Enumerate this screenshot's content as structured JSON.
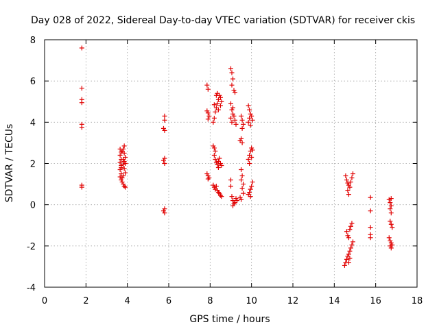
{
  "chart_data": {
    "type": "scatter",
    "title": "Day 028 of 2022, Sidereal Day-to-day VTEC variation (SDTVAR) for receiver ckis",
    "xlabel": "GPS time / hours",
    "ylabel": "SDTVAR / TECUs",
    "xlim": [
      0,
      18
    ],
    "ylim": [
      -4,
      8
    ],
    "x_ticks": [
      0,
      2,
      4,
      6,
      8,
      10,
      12,
      14,
      16,
      18
    ],
    "x_tick_labels": [
      "0",
      "2",
      "4",
      "6",
      "8",
      "10",
      "12",
      "14",
      "16",
      "18"
    ],
    "y_ticks": [
      -4,
      -2,
      0,
      2,
      4,
      6,
      8
    ],
    "y_tick_labels": [
      "-4",
      "-2",
      "0",
      "2",
      "4",
      "6",
      "8"
    ],
    "grid": true,
    "marker": "plus",
    "marker_color": "#e00000",
    "series": [
      {
        "name": "SDTVAR",
        "points": [
          [
            1.8,
            7.6
          ],
          [
            1.8,
            5.65
          ],
          [
            1.8,
            5.1
          ],
          [
            1.8,
            4.95
          ],
          [
            1.8,
            3.9
          ],
          [
            1.8,
            3.75
          ],
          [
            1.8,
            0.95
          ],
          [
            1.8,
            0.85
          ],
          [
            3.65,
            2.7
          ],
          [
            3.7,
            2.55
          ],
          [
            3.65,
            2.4
          ],
          [
            3.7,
            2.2
          ],
          [
            3.65,
            2.05
          ],
          [
            3.7,
            1.9
          ],
          [
            3.65,
            1.7
          ],
          [
            3.7,
            1.5
          ],
          [
            3.65,
            1.35
          ],
          [
            3.7,
            1.2
          ],
          [
            3.75,
            1.1
          ],
          [
            3.8,
            1.0
          ],
          [
            3.85,
            0.9
          ],
          [
            3.9,
            0.85
          ],
          [
            3.85,
            2.85
          ],
          [
            3.8,
            2.7
          ],
          [
            3.85,
            2.5
          ],
          [
            3.9,
            2.3
          ],
          [
            3.85,
            2.1
          ],
          [
            3.8,
            1.95
          ],
          [
            3.85,
            1.75
          ],
          [
            3.9,
            1.55
          ],
          [
            3.8,
            1.4
          ],
          [
            3.75,
            1.3
          ],
          [
            3.9,
            2.0
          ],
          [
            3.75,
            2.6
          ],
          [
            3.7,
            1.8
          ],
          [
            3.8,
            2.2
          ],
          [
            5.8,
            4.3
          ],
          [
            5.8,
            4.1
          ],
          [
            5.75,
            3.7
          ],
          [
            5.8,
            3.6
          ],
          [
            5.8,
            2.25
          ],
          [
            5.75,
            2.15
          ],
          [
            5.8,
            2.0
          ],
          [
            5.8,
            -0.2
          ],
          [
            5.75,
            -0.3
          ],
          [
            5.8,
            -0.4
          ],
          [
            7.85,
            5.8
          ],
          [
            7.9,
            5.6
          ],
          [
            7.85,
            4.55
          ],
          [
            7.9,
            4.45
          ],
          [
            7.95,
            4.3
          ],
          [
            7.9,
            4.15
          ],
          [
            7.85,
            1.5
          ],
          [
            7.9,
            1.4
          ],
          [
            7.95,
            1.3
          ],
          [
            7.9,
            1.25
          ],
          [
            8.15,
            2.85
          ],
          [
            8.2,
            2.75
          ],
          [
            8.25,
            2.6
          ],
          [
            8.2,
            2.4
          ],
          [
            8.25,
            2.2
          ],
          [
            8.3,
            2.05
          ],
          [
            8.35,
            1.95
          ],
          [
            8.4,
            2.1
          ],
          [
            8.45,
            2.25
          ],
          [
            8.5,
            2.0
          ],
          [
            8.55,
            1.9
          ],
          [
            8.4,
            1.8
          ],
          [
            8.15,
            0.95
          ],
          [
            8.2,
            0.85
          ],
          [
            8.25,
            0.75
          ],
          [
            8.3,
            0.9
          ],
          [
            8.35,
            0.7
          ],
          [
            8.4,
            0.6
          ],
          [
            8.45,
            0.55
          ],
          [
            8.5,
            0.45
          ],
          [
            8.55,
            0.4
          ],
          [
            8.15,
            4.0
          ],
          [
            8.2,
            4.2
          ],
          [
            8.25,
            4.5
          ],
          [
            8.3,
            4.7
          ],
          [
            8.35,
            4.9
          ],
          [
            8.4,
            5.1
          ],
          [
            8.45,
            5.3
          ],
          [
            8.5,
            5.2
          ],
          [
            8.55,
            5.0
          ],
          [
            8.3,
            5.3
          ],
          [
            8.4,
            4.6
          ],
          [
            8.5,
            4.8
          ],
          [
            8.2,
            4.85
          ],
          [
            8.35,
            5.4
          ],
          [
            9.0,
            6.6
          ],
          [
            9.05,
            6.4
          ],
          [
            9.1,
            6.1
          ],
          [
            9.05,
            5.8
          ],
          [
            9.15,
            5.55
          ],
          [
            9.2,
            5.45
          ],
          [
            9.0,
            4.9
          ],
          [
            9.05,
            4.6
          ],
          [
            9.1,
            4.4
          ],
          [
            9.0,
            4.2
          ],
          [
            9.05,
            4.0
          ],
          [
            9.15,
            4.3
          ],
          [
            9.2,
            4.1
          ],
          [
            9.25,
            3.9
          ],
          [
            9.1,
            4.7
          ],
          [
            9.0,
            1.2
          ],
          [
            9.0,
            0.9
          ],
          [
            9.05,
            0.4
          ],
          [
            9.1,
            0.2
          ],
          [
            9.15,
            0.05
          ],
          [
            9.2,
            0.1
          ],
          [
            9.25,
            0.3
          ],
          [
            9.3,
            0.2
          ],
          [
            9.1,
            -0.05
          ],
          [
            9.5,
            4.3
          ],
          [
            9.55,
            4.1
          ],
          [
            9.6,
            3.9
          ],
          [
            9.55,
            3.7
          ],
          [
            9.5,
            3.2
          ],
          [
            9.55,
            3.0
          ],
          [
            9.45,
            3.1
          ],
          [
            9.5,
            1.7
          ],
          [
            9.55,
            1.4
          ],
          [
            9.5,
            1.2
          ],
          [
            9.6,
            1.0
          ],
          [
            9.55,
            0.8
          ],
          [
            9.6,
            0.55
          ],
          [
            9.45,
            0.35
          ],
          [
            9.5,
            0.25
          ],
          [
            9.85,
            4.8
          ],
          [
            9.9,
            4.6
          ],
          [
            9.95,
            4.4
          ],
          [
            9.9,
            4.2
          ],
          [
            9.85,
            4.0
          ],
          [
            10.0,
            4.3
          ],
          [
            10.05,
            4.1
          ],
          [
            9.95,
            3.85
          ],
          [
            9.85,
            2.2
          ],
          [
            9.9,
            2.4
          ],
          [
            9.95,
            2.6
          ],
          [
            10.0,
            2.75
          ],
          [
            10.05,
            2.65
          ],
          [
            9.9,
            2.0
          ],
          [
            10.0,
            2.3
          ],
          [
            9.85,
            0.5
          ],
          [
            9.9,
            0.6
          ],
          [
            9.95,
            0.75
          ],
          [
            10.0,
            0.9
          ],
          [
            10.05,
            1.1
          ],
          [
            9.95,
            0.4
          ],
          [
            14.55,
            1.4
          ],
          [
            14.6,
            1.2
          ],
          [
            14.65,
            1.05
          ],
          [
            14.7,
            0.95
          ],
          [
            14.75,
            0.85
          ],
          [
            14.8,
            1.1
          ],
          [
            14.85,
            1.3
          ],
          [
            14.9,
            1.5
          ],
          [
            14.65,
            0.7
          ],
          [
            14.7,
            0.5
          ],
          [
            14.6,
            -1.3
          ],
          [
            14.65,
            -1.5
          ],
          [
            14.7,
            -1.6
          ],
          [
            14.75,
            -1.2
          ],
          [
            14.8,
            -1.05
          ],
          [
            14.85,
            -0.9
          ],
          [
            14.5,
            -2.95
          ],
          [
            14.55,
            -2.8
          ],
          [
            14.6,
            -2.65
          ],
          [
            14.65,
            -2.5
          ],
          [
            14.7,
            -2.4
          ],
          [
            14.75,
            -2.25
          ],
          [
            14.8,
            -2.1
          ],
          [
            14.85,
            -1.95
          ],
          [
            14.9,
            -1.8
          ],
          [
            14.75,
            -2.6
          ],
          [
            14.7,
            -2.8
          ],
          [
            15.75,
            0.35
          ],
          [
            15.75,
            -0.3
          ],
          [
            15.75,
            -1.1
          ],
          [
            15.75,
            -1.45
          ],
          [
            15.75,
            -1.6
          ],
          [
            16.65,
            0.25
          ],
          [
            16.7,
            0.1
          ],
          [
            16.75,
            -0.05
          ],
          [
            16.7,
            -0.2
          ],
          [
            16.75,
            -0.4
          ],
          [
            16.7,
            -0.8
          ],
          [
            16.75,
            -0.95
          ],
          [
            16.8,
            -1.1
          ],
          [
            16.75,
            0.3
          ],
          [
            16.65,
            -1.6
          ],
          [
            16.7,
            -1.75
          ],
          [
            16.75,
            -1.85
          ],
          [
            16.8,
            -1.95
          ],
          [
            16.75,
            -2.1
          ],
          [
            16.7,
            -2.0
          ]
        ]
      }
    ]
  }
}
